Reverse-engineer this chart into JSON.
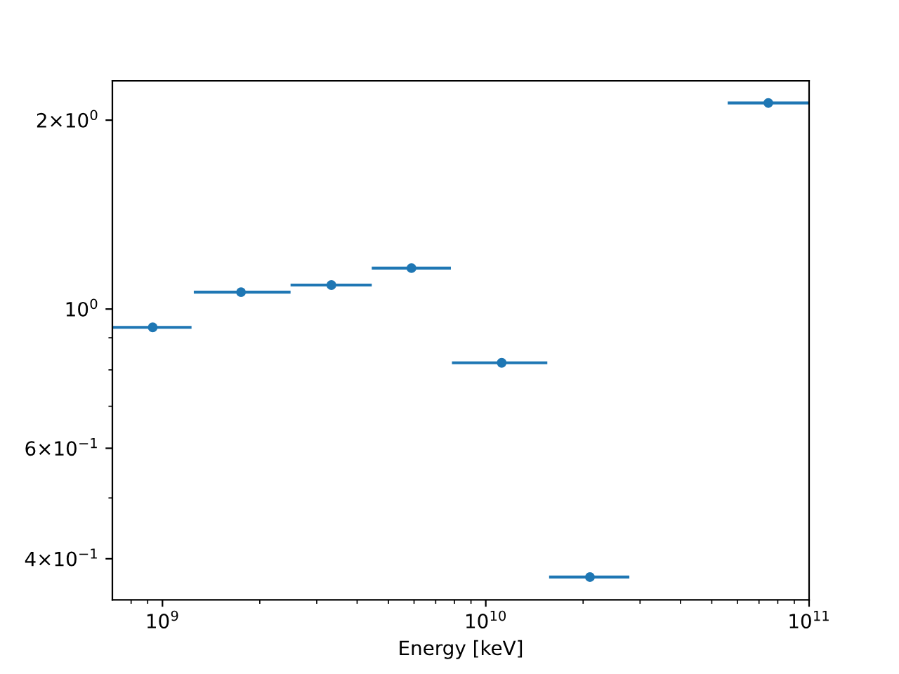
{
  "chart_data": {
    "type": "scatter",
    "xlabel": "Energy [keV]",
    "log": "xy",
    "marker": "circle",
    "grid": false,
    "legend": false,
    "series": [
      {
        "color": "#1f77b4",
        "x": [
          933000000.0,
          1750000000.0,
          3330000000.0,
          5890000000.0,
          11200000000.0,
          21000000000.0,
          74800000000.0
        ],
        "values": [
          0.935,
          1.064,
          1.092,
          1.162,
          0.821,
          0.374,
          2.13
        ],
        "xerrors": [
          [
            700000000.0,
            1230000000.0
          ],
          [
            1250000000.0,
            2490000000.0
          ],
          [
            2490000000.0,
            4440000000.0
          ],
          [
            4440000000.0,
            7800000000.0
          ],
          [
            7860000000.0,
            15500000000.0
          ],
          [
            15700000000.0,
            27800000000.0
          ],
          [
            56000000000.0,
            100000000000.0
          ]
        ]
      }
    ],
    "xlim": [
      700000000.0,
      100000000000.0
    ],
    "ylim": [
      0.344,
      2.31
    ],
    "xticks": [
      {
        "value": 800000000.0,
        "label": null
      },
      {
        "value": 900000000.0,
        "label": null
      },
      {
        "value": 1000000000.0,
        "label": "10$^{9}$"
      },
      {
        "value": 2000000000.0,
        "label": null
      },
      {
        "value": 3000000000.0,
        "label": null
      },
      {
        "value": 4000000000.0,
        "label": null
      },
      {
        "value": 5000000000.0,
        "label": null
      },
      {
        "value": 6000000000.0,
        "label": null
      },
      {
        "value": 7000000000.0,
        "label": null
      },
      {
        "value": 8000000000.0,
        "label": null
      },
      {
        "value": 9000000000.0,
        "label": null
      },
      {
        "value": 10000000000.0,
        "label": "10$^{10}$"
      },
      {
        "value": 20000000000.0,
        "label": null
      },
      {
        "value": 30000000000.0,
        "label": null
      },
      {
        "value": 40000000000.0,
        "label": null
      },
      {
        "value": 50000000000.0,
        "label": null
      },
      {
        "value": 60000000000.0,
        "label": null
      },
      {
        "value": 70000000000.0,
        "label": null
      },
      {
        "value": 80000000000.0,
        "label": null
      },
      {
        "value": 90000000000.0,
        "label": null
      },
      {
        "value": 100000000000.0,
        "label": "10$^{11}$"
      }
    ],
    "yticks": [
      {
        "value": 0.4,
        "label": "4×10$^{−1}$"
      },
      {
        "value": 0.5,
        "label": null
      },
      {
        "value": 0.6,
        "label": "6×10$^{−1}$"
      },
      {
        "value": 0.7,
        "label": null
      },
      {
        "value": 0.8,
        "label": null
      },
      {
        "value": 0.9,
        "label": null
      },
      {
        "value": 1,
        "label": "10$^{0}$"
      },
      {
        "value": 2,
        "label": "2×10$^{0}$"
      }
    ]
  }
}
